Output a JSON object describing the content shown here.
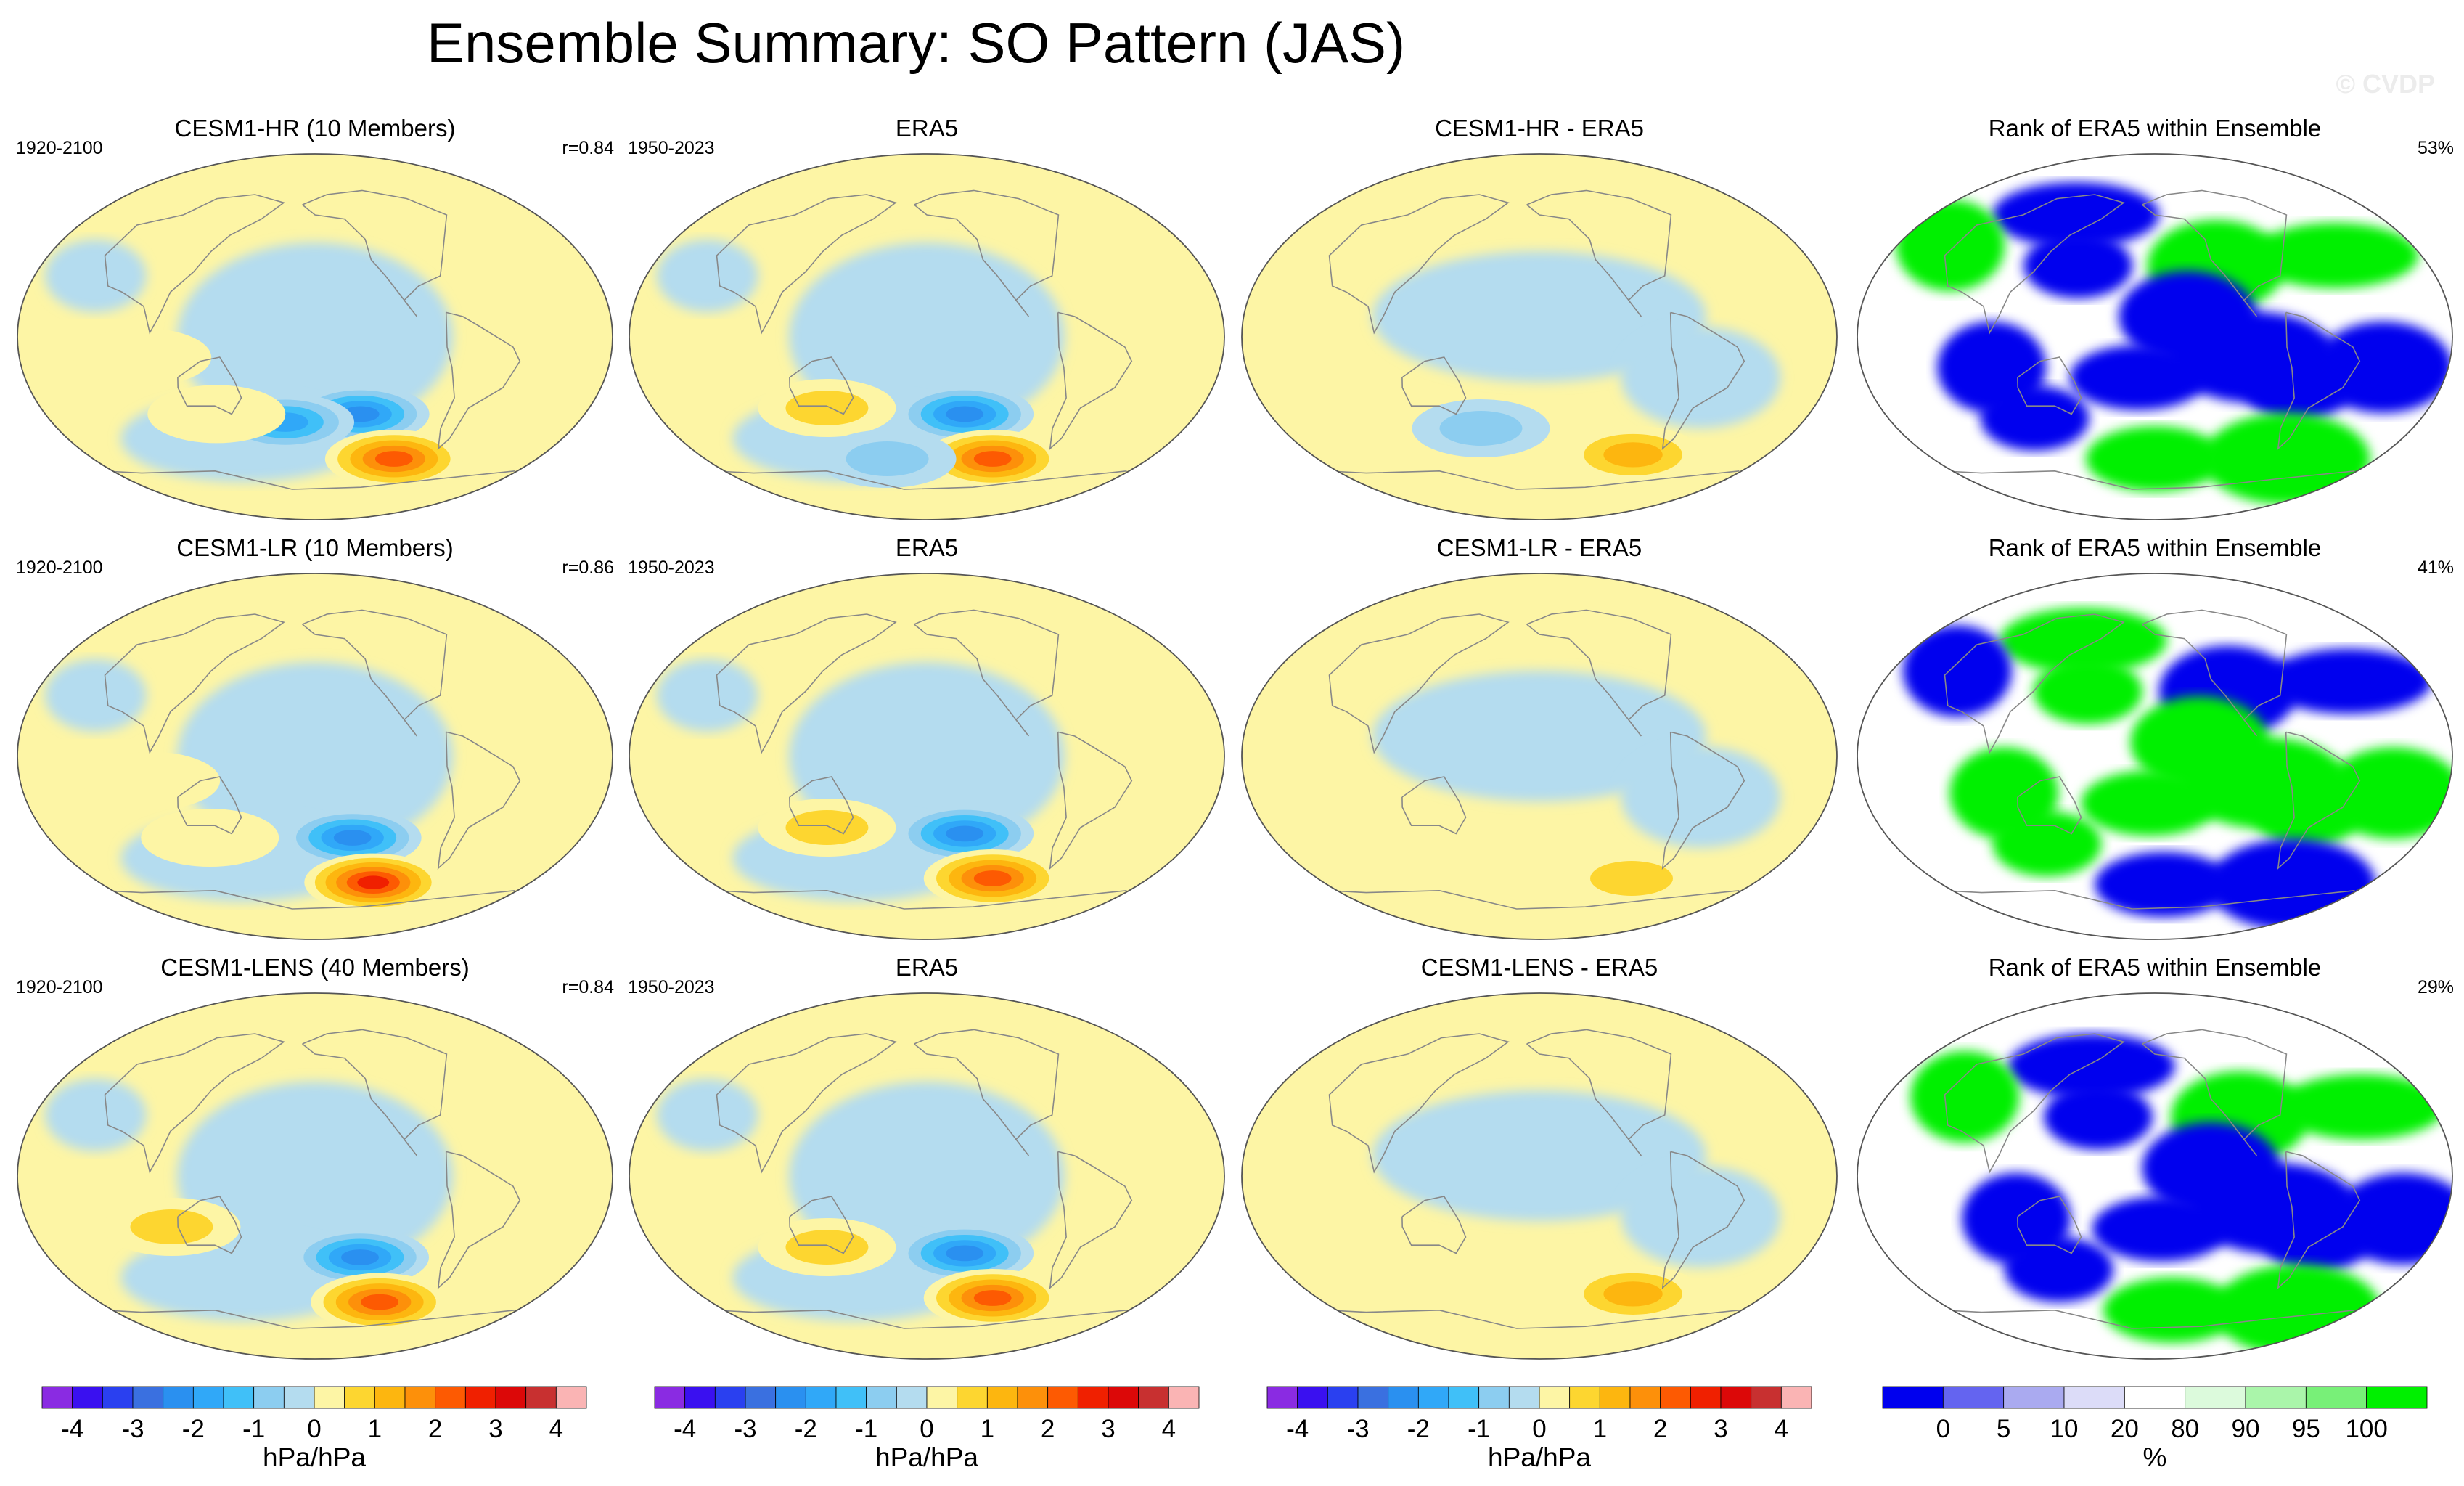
{
  "title": "Ensemble Summary: SO Pattern (JAS)",
  "watermark": "© CVDP",
  "colors": {
    "ocean_neg_weak": "#b4dcef",
    "ocean_pos_weak": "#fdf5a5",
    "rank_low": "#0000ee",
    "rank_high": "#00f000",
    "coast": "#888888"
  },
  "rows": [
    {
      "panels": [
        {
          "title": "CESM1-HR (10 Members)",
          "left": "1920-2100",
          "right": "r=0.84",
          "kind": "model"
        },
        {
          "title": "ERA5",
          "left": "1950-2023",
          "right": "",
          "kind": "obs"
        },
        {
          "title": "CESM1-HR - ERA5",
          "left": "",
          "right": "",
          "kind": "diff"
        },
        {
          "title": "Rank of ERA5 within Ensemble",
          "left": "",
          "right": "53%",
          "kind": "rank"
        }
      ]
    },
    {
      "panels": [
        {
          "title": "CESM1-LR (10 Members)",
          "left": "1920-2100",
          "right": "r=0.86",
          "kind": "model"
        },
        {
          "title": "ERA5",
          "left": "1950-2023",
          "right": "",
          "kind": "obs"
        },
        {
          "title": "CESM1-LR - ERA5",
          "left": "",
          "right": "",
          "kind": "diff"
        },
        {
          "title": "Rank of ERA5 within Ensemble",
          "left": "",
          "right": "41%",
          "kind": "rank"
        }
      ]
    },
    {
      "panels": [
        {
          "title": "CESM1-LENS (40 Members)",
          "left": "1920-2100",
          "right": "r=0.84",
          "kind": "model"
        },
        {
          "title": "ERA5",
          "left": "1950-2023",
          "right": "",
          "kind": "obs"
        },
        {
          "title": "CESM1-LENS - ERA5",
          "left": "",
          "right": "",
          "kind": "diff"
        },
        {
          "title": "Rank of ERA5 within Ensemble",
          "left": "",
          "right": "29%",
          "kind": "rank"
        }
      ]
    }
  ],
  "chart_data": {
    "type": "heatmap",
    "projection": "Robinson (Pacific-centered)",
    "units": "hPa/hPa",
    "colorbar_pattern": {
      "ticks": [
        "-4",
        "-3",
        "-2",
        "-1",
        "0",
        "1",
        "2",
        "3",
        "4"
      ],
      "tick_values": [
        -4,
        -3,
        -2,
        -1,
        0,
        1,
        2,
        3,
        4
      ],
      "levels": [
        -4,
        -3.5,
        -3,
        -2.5,
        -2,
        -1.5,
        -1,
        -0.5,
        0,
        0.5,
        1,
        1.5,
        2,
        2.5,
        3,
        3.5,
        4
      ],
      "colors": [
        "#8a2be2",
        "#3a10f0",
        "#2a40f0",
        "#3a70e0",
        "#2a90f0",
        "#30a8f8",
        "#40c0f8",
        "#8ccdf0",
        "#b4dcef",
        "#fdf5a5",
        "#fdd630",
        "#fdb60f",
        "#fd900a",
        "#fd5a02",
        "#f02000",
        "#dc0808",
        "#c83030",
        "#fab4b4"
      ],
      "unit_label": "hPa/hPa"
    },
    "colorbar_rank": {
      "ticks": [
        "0",
        "5",
        "10",
        "20",
        "80",
        "90",
        "95",
        "100"
      ],
      "tick_values": [
        0,
        5,
        10,
        20,
        80,
        90,
        95,
        100
      ],
      "colors": [
        "#0000ee",
        "#6464f0",
        "#aaaaf0",
        "#dcdcf8",
        "#ffffff",
        "#dcfadc",
        "#aaf5aa",
        "#78f078",
        "#00f000"
      ],
      "unit_label": "%"
    },
    "anomalies": [
      {
        "row": 0,
        "kind": "model",
        "blobs": [
          {
            "lon": 230,
            "lat": -38,
            "v": -2.6
          },
          {
            "lon": 180,
            "lat": -42,
            "v": -2.2
          },
          {
            "lon": 260,
            "lat": -60,
            "v": 2.6
          },
          {
            "lon": 135,
            "lat": -38,
            "v": 0.7
          },
          {
            "lon": 95,
            "lat": -10,
            "v": 0.6
          }
        ]
      },
      {
        "row": 0,
        "kind": "obs",
        "blobs": [
          {
            "lon": 225,
            "lat": -38,
            "v": -2.4
          },
          {
            "lon": 250,
            "lat": -60,
            "v": 2.4
          },
          {
            "lon": 135,
            "lat": -35,
            "v": 0.8
          },
          {
            "lon": 170,
            "lat": -60,
            "v": -0.8
          }
        ]
      },
      {
        "row": 0,
        "kind": "diff",
        "blobs": [
          {
            "lon": 270,
            "lat": -58,
            "v": 1.6
          },
          {
            "lon": 160,
            "lat": -45,
            "v": -0.9
          }
        ]
      },
      {
        "row": 1,
        "kind": "model",
        "blobs": [
          {
            "lon": 225,
            "lat": -40,
            "v": -2.4
          },
          {
            "lon": 245,
            "lat": -62,
            "v": 2.8
          },
          {
            "lon": 100,
            "lat": -12,
            "v": 0.7
          },
          {
            "lon": 130,
            "lat": -40,
            "v": 0.6
          }
        ]
      },
      {
        "row": 1,
        "kind": "obs",
        "blobs": [
          {
            "lon": 225,
            "lat": -38,
            "v": -2.4
          },
          {
            "lon": 250,
            "lat": -60,
            "v": 2.4
          },
          {
            "lon": 135,
            "lat": -35,
            "v": 0.8
          }
        ]
      },
      {
        "row": 1,
        "kind": "diff",
        "blobs": [
          {
            "lon": 270,
            "lat": -60,
            "v": 1.0
          }
        ]
      },
      {
        "row": 2,
        "kind": "model",
        "blobs": [
          {
            "lon": 230,
            "lat": -40,
            "v": -2.3
          },
          {
            "lon": 250,
            "lat": -62,
            "v": 2.7
          },
          {
            "lon": 110,
            "lat": -25,
            "v": 0.8
          }
        ]
      },
      {
        "row": 2,
        "kind": "obs",
        "blobs": [
          {
            "lon": 225,
            "lat": -38,
            "v": -2.4
          },
          {
            "lon": 250,
            "lat": -60,
            "v": 2.4
          },
          {
            "lon": 135,
            "lat": -35,
            "v": 0.8
          }
        ]
      },
      {
        "row": 2,
        "kind": "diff",
        "blobs": [
          {
            "lon": 270,
            "lat": -58,
            "v": 1.5
          }
        ]
      }
    ]
  }
}
